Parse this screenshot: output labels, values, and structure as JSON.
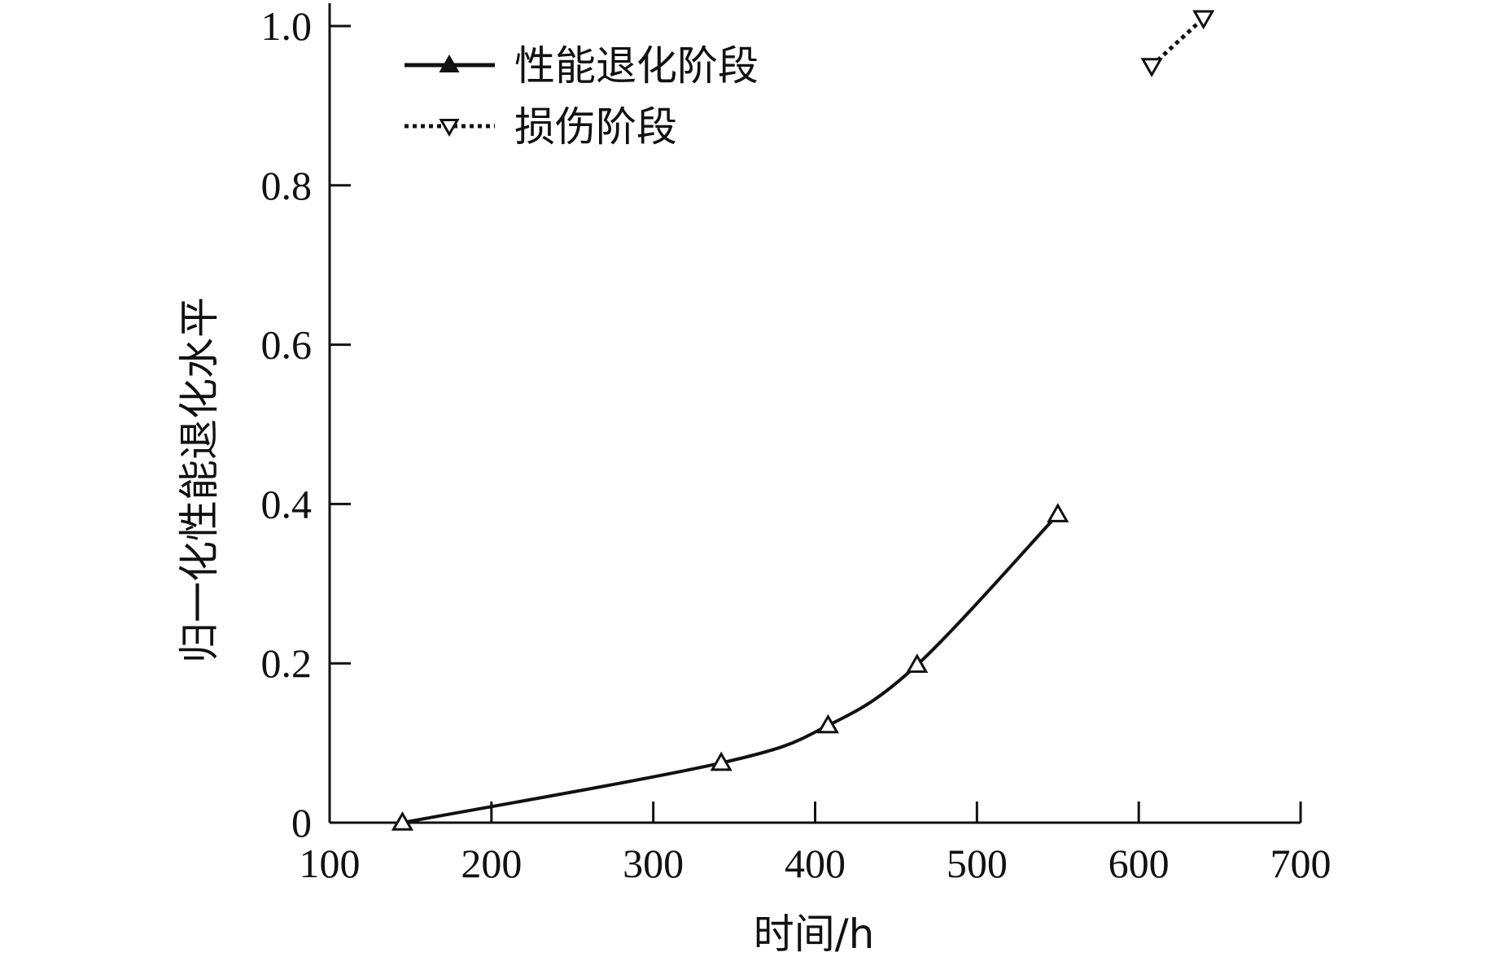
{
  "chart_data": {
    "type": "line",
    "xlabel": "时间/h",
    "ylabel": "归一化性能退化水平",
    "xlim": [
      100,
      700
    ],
    "ylim": [
      0,
      1.0
    ],
    "x_ticks": [
      100,
      200,
      300,
      400,
      500,
      600,
      700
    ],
    "x_tick_labels": [
      "100",
      "200",
      "300",
      "400",
      "500",
      "600",
      "700"
    ],
    "y_ticks": [
      0,
      0.2,
      0.4,
      0.6,
      0.8,
      1.0
    ],
    "y_tick_labels": [
      "0",
      "0.2",
      "0.4",
      "0.6",
      "0.8",
      "1.0"
    ],
    "grid": false,
    "legend_position": "top-left",
    "series": [
      {
        "name": "性能退化阶段",
        "marker": "triangle-up",
        "line_style": "solid",
        "color": "#111111",
        "x": [
          145,
          342,
          408,
          463,
          550
        ],
        "y": [
          0.0,
          0.075,
          0.122,
          0.198,
          0.387
        ]
      },
      {
        "name": "损伤阶段",
        "marker": "triangle-down",
        "line_style": "dotted",
        "color": "#111111",
        "x": [
          608,
          640
        ],
        "y": [
          0.95,
          1.01
        ]
      }
    ]
  }
}
